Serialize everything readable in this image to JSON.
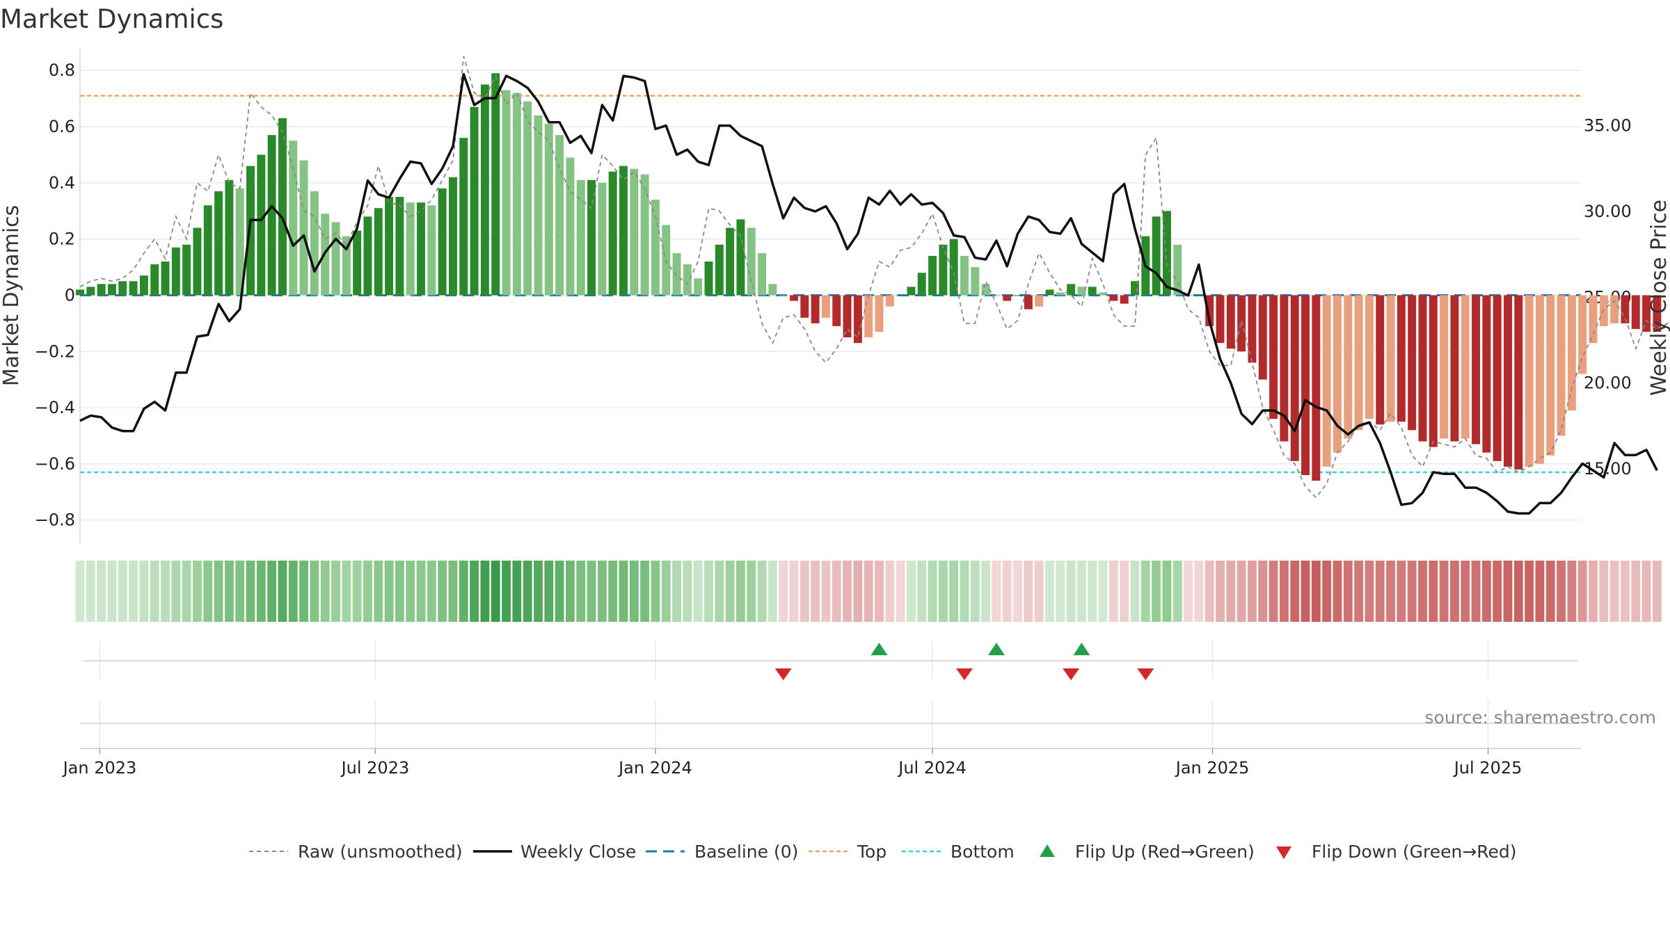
{
  "chart_data": {
    "type": "bar",
    "title": "Market Dynamics",
    "ylabel": "Market Dynamics",
    "y2label": "Weekly Close Price",
    "source": "source: sharemaestro.com",
    "ylim": [
      -0.88,
      0.86
    ],
    "y2lim": [
      10.7,
      39.2
    ],
    "y_ticks": [
      "0.8",
      "0.6",
      "0.4",
      "0.2",
      "0",
      "−0.2",
      "−0.4",
      "−0.6",
      "−0.8"
    ],
    "y_tick_values": [
      0.8,
      0.6,
      0.4,
      0.2,
      0,
      -0.2,
      -0.4,
      -0.6,
      -0.8
    ],
    "y2_ticks": [
      "35.00",
      "30.00",
      "25.00",
      "20.00",
      "15.00"
    ],
    "y2_tick_values": [
      35,
      30,
      25,
      20,
      15
    ],
    "x_ticks": [
      "Jan 2023",
      "Jul 2023",
      "Jan 2024",
      "Jul 2024",
      "Jan 2025",
      "Jul 2025"
    ],
    "x_tick_dates": [
      "2023-01-01",
      "2023-07-01",
      "2024-01-01",
      "2024-07-01",
      "2025-01-01",
      "2025-07-01"
    ],
    "x_start": "2022-12-19",
    "x_end": "2025-08-31",
    "top_line": 0.71,
    "bottom_line": -0.63,
    "baseline": 0,
    "colors": {
      "pos_strong": "#2a8a2a",
      "pos_weak": "#84c384",
      "neg_strong": "#b22a2a",
      "neg_weak": "#e8a07f",
      "close": "#111111",
      "raw": "#888888",
      "baseline": "#1f77b4",
      "top": "#f4a460",
      "bottom": "#40d0d0",
      "flip_up": "#22a048",
      "flip_down": "#d62728",
      "grid": "#e6e6e6"
    },
    "dates_start": "2022-12-19",
    "interval_days": 7,
    "values": [
      0.02,
      0.03,
      0.04,
      0.04,
      0.05,
      0.05,
      0.07,
      0.11,
      0.12,
      0.17,
      0.18,
      0.24,
      0.32,
      0.37,
      0.41,
      0.38,
      0.46,
      0.5,
      0.57,
      0.63,
      0.55,
      0.48,
      0.37,
      0.29,
      0.26,
      0.21,
      0.23,
      0.28,
      0.31,
      0.35,
      0.35,
      0.33,
      0.33,
      0.32,
      0.38,
      0.42,
      0.56,
      0.67,
      0.75,
      0.79,
      0.73,
      0.72,
      0.69,
      0.64,
      0.61,
      0.57,
      0.49,
      0.41,
      0.41,
      0.4,
      0.44,
      0.46,
      0.45,
      0.43,
      0.34,
      0.25,
      0.15,
      0.11,
      0.06,
      0.12,
      0.18,
      0.24,
      0.27,
      0.24,
      0.15,
      0.04,
      0.0,
      -0.02,
      -0.08,
      -0.1,
      -0.08,
      -0.11,
      -0.15,
      -0.17,
      -0.15,
      -0.13,
      -0.04,
      0.0,
      0.03,
      0.08,
      0.14,
      0.18,
      0.2,
      0.14,
      0.1,
      0.04,
      0.0,
      -0.02,
      0.0,
      -0.05,
      -0.04,
      0.02,
      0.01,
      0.04,
      0.03,
      0.03,
      0.01,
      -0.02,
      -0.03,
      0.05,
      0.21,
      0.28,
      0.3,
      0.18,
      0.0,
      0.0,
      -0.11,
      -0.17,
      -0.19,
      -0.2,
      -0.24,
      -0.3,
      -0.44,
      -0.52,
      -0.59,
      -0.64,
      -0.66,
      -0.61,
      -0.56,
      -0.51,
      -0.48,
      -0.44,
      -0.46,
      -0.45,
      -0.45,
      -0.48,
      -0.52,
      -0.54,
      -0.51,
      -0.52,
      -0.51,
      -0.53,
      -0.56,
      -0.59,
      -0.61,
      -0.62,
      -0.61,
      -0.6,
      -0.57,
      -0.5,
      -0.41,
      -0.28,
      -0.17,
      -0.11,
      -0.1,
      -0.1,
      -0.12,
      -0.13,
      -0.13
    ],
    "raw": [
      0.03,
      0.05,
      0.06,
      0.05,
      0.06,
      0.09,
      0.15,
      0.2,
      0.13,
      0.28,
      0.2,
      0.4,
      0.37,
      0.5,
      0.4,
      0.38,
      0.72,
      0.67,
      0.64,
      0.58,
      0.45,
      0.3,
      0.28,
      0.2,
      0.22,
      0.18,
      0.26,
      0.32,
      0.46,
      0.33,
      0.32,
      0.28,
      0.3,
      0.34,
      0.41,
      0.48,
      0.85,
      0.72,
      0.7,
      0.78,
      0.68,
      0.72,
      0.62,
      0.58,
      0.55,
      0.45,
      0.37,
      0.34,
      0.31,
      0.5,
      0.46,
      0.41,
      0.44,
      0.38,
      0.28,
      0.12,
      0.07,
      0.04,
      0.12,
      0.31,
      0.3,
      0.25,
      0.21,
      0.05,
      -0.1,
      -0.17,
      -0.08,
      -0.07,
      -0.12,
      -0.2,
      -0.24,
      -0.19,
      -0.12,
      -0.15,
      0.0,
      0.12,
      0.1,
      0.16,
      0.17,
      0.22,
      0.29,
      0.17,
      0.08,
      -0.1,
      -0.1,
      0.05,
      -0.03,
      -0.12,
      -0.09,
      0.04,
      0.15,
      0.08,
      0.02,
      0.0,
      -0.04,
      0.13,
      0.04,
      -0.07,
      -0.11,
      -0.11,
      0.5,
      0.56,
      0.1,
      0.05,
      -0.05,
      -0.08,
      -0.2,
      -0.25,
      -0.25,
      -0.09,
      -0.24,
      -0.4,
      -0.48,
      -0.57,
      -0.6,
      -0.68,
      -0.72,
      -0.67,
      -0.56,
      -0.52,
      -0.46,
      -0.45,
      -0.48,
      -0.42,
      -0.47,
      -0.57,
      -0.61,
      -0.52,
      -0.53,
      -0.54,
      -0.51,
      -0.57,
      -0.58,
      -0.63,
      -0.61,
      -0.63,
      -0.61,
      -0.58,
      -0.56,
      -0.48,
      -0.33,
      -0.22,
      -0.14,
      -0.05,
      -0.02,
      -0.08,
      -0.19,
      -0.09,
      -0.12,
      -0.1,
      -0.12,
      -0.17
    ],
    "close": [
      17.8,
      18.1,
      18.0,
      17.4,
      17.2,
      17.2,
      18.5,
      18.9,
      18.4,
      20.6,
      20.6,
      22.7,
      22.8,
      24.6,
      23.6,
      24.3,
      29.5,
      29.5,
      30.3,
      29.6,
      28.0,
      28.6,
      26.5,
      27.6,
      28.4,
      27.8,
      29.0,
      31.8,
      31.0,
      30.8,
      31.9,
      32.9,
      32.8,
      31.6,
      32.5,
      33.8,
      38.0,
      36.2,
      36.6,
      36.6,
      37.9,
      37.6,
      37.2,
      36.4,
      35.2,
      35.2,
      34.0,
      34.4,
      33.4,
      36.2,
      35.3,
      37.9,
      37.8,
      37.6,
      34.8,
      35.0,
      33.3,
      33.6,
      32.9,
      32.7,
      35.0,
      35.0,
      34.4,
      34.1,
      33.8,
      31.6,
      29.6,
      30.8,
      30.2,
      30.0,
      30.3,
      29.3,
      27.8,
      28.7,
      30.8,
      30.4,
      31.2,
      30.4,
      31.0,
      30.4,
      30.5,
      29.9,
      28.6,
      28.5,
      27.3,
      27.2,
      28.3,
      26.8,
      28.7,
      29.7,
      29.5,
      28.8,
      28.7,
      29.6,
      28.1,
      27.6,
      27.1,
      31.0,
      31.6,
      29.0,
      26.8,
      26.4,
      25.6,
      25.4,
      25.1,
      26.9,
      23.6,
      21.4,
      20.0,
      18.2,
      17.6,
      18.4,
      18.4,
      18.1,
      17.2,
      19.0,
      18.6,
      18.4,
      17.5,
      17.0,
      17.5,
      17.7,
      16.5,
      14.8,
      12.9,
      13.0,
      13.6,
      14.8,
      14.7,
      14.7,
      13.9,
      13.9,
      13.6,
      13.1,
      12.5,
      12.4,
      12.4,
      13.0,
      13.0,
      13.6,
      14.5,
      15.3,
      14.9,
      14.5,
      16.5,
      15.8,
      15.8,
      16.1,
      14.9
    ],
    "heat_stops": [
      {
        "v": -0.66,
        "c": "#c65d5d"
      },
      {
        "v": -0.3,
        "c": "#d99191"
      },
      {
        "v": 0.0,
        "c": "#f2d6d6"
      },
      {
        "v": 0.001,
        "c": "#d3ead3"
      },
      {
        "v": 0.3,
        "c": "#8fca8f"
      },
      {
        "v": 0.79,
        "c": "#3a9a4a"
      }
    ],
    "flip_up_dates": [
      "2024-05-27",
      "2024-08-12",
      "2024-10-07"
    ],
    "flip_down_dates": [
      "2024-03-25",
      "2024-07-22",
      "2024-09-30",
      "2024-11-18"
    ]
  },
  "legend": {
    "raw": "Raw (unsmoothed)",
    "close": "Weekly Close",
    "baseline": "Baseline (0)",
    "top": "Top",
    "bottom": "Bottom",
    "flip_up": "Flip Up (Red→Green)",
    "flip_down": "Flip Down (Green→Red)"
  }
}
